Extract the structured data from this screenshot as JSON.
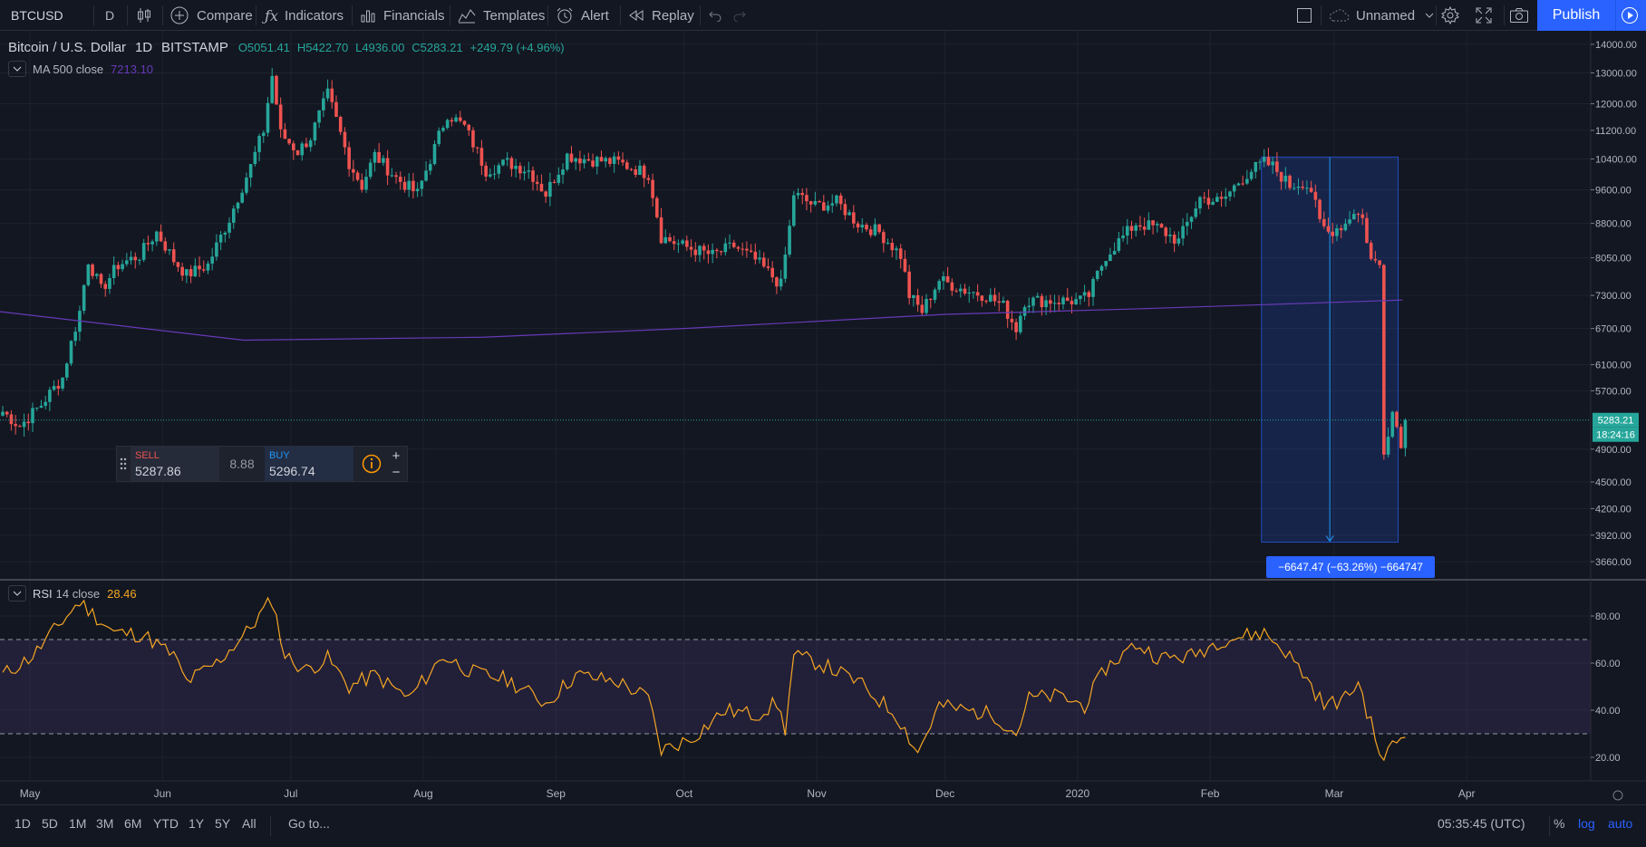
{
  "toolbar": {
    "symbol": "BTCUSD",
    "interval": "D",
    "compare": "Compare",
    "indicators": "Indicators",
    "financials": "Financials",
    "templates": "Templates",
    "alert": "Alert",
    "replay": "Replay",
    "layout_name": "Unnamed",
    "publish": "Publish"
  },
  "legend": {
    "name": "Bitcoin / U.S. Dollar",
    "interval": "1D",
    "exchange": "BITSTAMP",
    "open": "O5051.41",
    "high": "H5422.70",
    "low": "L4936.00",
    "close": "C5283.21",
    "change": "+249.79 (+4.96%)"
  },
  "ma": {
    "label": "MA 500 close",
    "value": "7213.10"
  },
  "rsi": {
    "label": "RSI",
    "params": "14 close",
    "value": "28.46"
  },
  "trade": {
    "sell_label": "SELL",
    "sell_price": "5287.86",
    "spread": "8.88",
    "buy_label": "BUY",
    "buy_price": "5296.74"
  },
  "measure": {
    "label": "−6647.47 (−63.26%) −664747"
  },
  "price_tag": {
    "price": "5283.21",
    "countdown": "18:24:16"
  },
  "bottom": {
    "ranges": [
      "1D",
      "5D",
      "1M",
      "3M",
      "6M",
      "YTD",
      "1Y",
      "5Y",
      "All"
    ],
    "goto": "Go to...",
    "time": "05:35:45 (UTC)",
    "percent": "%",
    "log": "log",
    "auto": "auto"
  },
  "colors": {
    "up": "#26a69a",
    "down": "#ef5350",
    "ma": "#673ab7",
    "rsi": "#f5a623",
    "accent": "#2962ff"
  },
  "chart_data": [
    {
      "type": "candlestick",
      "title": "Bitcoin / U.S. Dollar, 1D, BITSTAMP",
      "scale": "log",
      "ylim": [
        3500,
        14500
      ],
      "y_ticks": [
        "14000.00",
        "13000.00",
        "12000.00",
        "11200.00",
        "10400.00",
        "9600.00",
        "8800.00",
        "8050.00",
        "7300.00",
        "6700.00",
        "6100.00",
        "5700.00",
        "4900.00",
        "4500.00",
        "4200.00",
        "3920.00",
        "3660.00"
      ],
      "x_ticks": [
        "May",
        "Jun",
        "Jul",
        "Aug",
        "Sep",
        "Oct",
        "Nov",
        "Dec",
        "2020",
        "Feb",
        "Mar",
        "Apr"
      ],
      "x_range": [
        "2019-04-24",
        "2020-04-30"
      ],
      "anchors": [
        [
          "2019-04-24",
          5400
        ],
        [
          "2019-04-28",
          5200
        ],
        [
          "2019-05-03",
          5500
        ],
        [
          "2019-05-08",
          5900
        ],
        [
          "2019-05-12",
          7000
        ],
        [
          "2019-05-14",
          8000
        ],
        [
          "2019-05-17",
          7400
        ],
        [
          "2019-05-21",
          7900
        ],
        [
          "2019-05-26",
          8100
        ],
        [
          "2019-05-30",
          8600
        ],
        [
          "2019-06-03",
          8000
        ],
        [
          "2019-06-06",
          7700
        ],
        [
          "2019-06-11",
          7900
        ],
        [
          "2019-06-16",
          8900
        ],
        [
          "2019-06-21",
          10200
        ],
        [
          "2019-06-24",
          11200
        ],
        [
          "2019-06-26",
          12900
        ],
        [
          "2019-06-28",
          11100
        ],
        [
          "2019-07-02",
          10600
        ],
        [
          "2019-07-05",
          11000
        ],
        [
          "2019-07-09",
          12300
        ],
        [
          "2019-07-11",
          11500
        ],
        [
          "2019-07-14",
          10300
        ],
        [
          "2019-07-17",
          9700
        ],
        [
          "2019-07-20",
          10500
        ],
        [
          "2019-07-25",
          9900
        ],
        [
          "2019-07-30",
          9500
        ],
        [
          "2019-08-03",
          10700
        ],
        [
          "2019-08-06",
          11700
        ],
        [
          "2019-08-10",
          11300
        ],
        [
          "2019-08-15",
          10100
        ],
        [
          "2019-08-20",
          10300
        ],
        [
          "2019-08-25",
          10100
        ],
        [
          "2019-08-29",
          9500
        ],
        [
          "2019-09-03",
          10500
        ],
        [
          "2019-09-07",
          10400
        ],
        [
          "2019-09-15",
          10300
        ],
        [
          "2019-09-22",
          10000
        ],
        [
          "2019-09-25",
          8500
        ],
        [
          "2019-09-30",
          8300
        ],
        [
          "2019-10-07",
          8100
        ],
        [
          "2019-10-12",
          8300
        ],
        [
          "2019-10-17",
          8000
        ],
        [
          "2019-10-23",
          7500
        ],
        [
          "2019-10-25",
          8700
        ],
        [
          "2019-10-26",
          9500
        ],
        [
          "2019-10-31",
          9200
        ],
        [
          "2019-11-05",
          9300
        ],
        [
          "2019-11-10",
          8800
        ],
        [
          "2019-11-15",
          8600
        ],
        [
          "2019-11-20",
          8100
        ],
        [
          "2019-11-22",
          7300
        ],
        [
          "2019-11-25",
          7000
        ],
        [
          "2019-11-29",
          7600
        ],
        [
          "2019-12-05",
          7400
        ],
        [
          "2019-12-10",
          7300
        ],
        [
          "2019-12-14",
          7100
        ],
        [
          "2019-12-17",
          6700
        ],
        [
          "2019-12-19",
          7200
        ],
        [
          "2019-12-25",
          7200
        ],
        [
          "2020-01-01",
          7200
        ],
        [
          "2020-01-03",
          7300
        ],
        [
          "2020-01-07",
          8100
        ],
        [
          "2020-01-14",
          8800
        ],
        [
          "2020-01-19",
          8700
        ],
        [
          "2020-01-24",
          8400
        ],
        [
          "2020-01-29",
          9400
        ],
        [
          "2020-02-03",
          9300
        ],
        [
          "2020-02-07",
          9800
        ],
        [
          "2020-02-10",
          10100
        ],
        [
          "2020-02-13",
          10300
        ],
        [
          "2020-02-15",
          10200
        ],
        [
          "2020-02-19",
          9700
        ],
        [
          "2020-02-22",
          9800
        ],
        [
          "2020-02-24",
          9600
        ],
        [
          "2020-02-26",
          8800
        ],
        [
          "2020-02-28",
          8600
        ],
        [
          "2020-03-03",
          8800
        ],
        [
          "2020-03-05",
          9100
        ],
        [
          "2020-03-07",
          8900
        ],
        [
          "2020-03-09",
          8000
        ],
        [
          "2020-03-11",
          7900
        ],
        [
          "2020-03-12",
          4900
        ],
        [
          "2020-03-14",
          5400
        ],
        [
          "2020-03-16",
          5000
        ],
        [
          "2020-03-17",
          5283
        ]
      ],
      "ma500": [
        [
          "2019-04-24",
          7000
        ],
        [
          "2019-06-20",
          6500
        ],
        [
          "2019-08-15",
          6550
        ],
        [
          "2019-10-01",
          6700
        ],
        [
          "2019-12-01",
          6950
        ],
        [
          "2020-01-15",
          7050
        ],
        [
          "2020-03-17",
          7213
        ]
      ],
      "last_price": 5283.21,
      "measure": {
        "from": [
          "2020-02-13",
          10450
        ],
        "to": [
          "2020-03-13",
          3850
        ]
      }
    },
    {
      "type": "line",
      "title": "RSI 14 close",
      "ylim": [
        10,
        95
      ],
      "y_ticks": [
        "80.00",
        "60.00",
        "40.00",
        "20.00"
      ],
      "bands": [
        30,
        70
      ],
      "points": [
        [
          "2019-04-24",
          55
        ],
        [
          "2019-05-01",
          63
        ],
        [
          "2019-05-08",
          78
        ],
        [
          "2019-05-12",
          86
        ],
        [
          "2019-05-20",
          73
        ],
        [
          "2019-05-27",
          72
        ],
        [
          "2019-06-03",
          63
        ],
        [
          "2019-06-06",
          52
        ],
        [
          "2019-06-13",
          60
        ],
        [
          "2019-06-20",
          73
        ],
        [
          "2019-06-26",
          87
        ],
        [
          "2019-06-29",
          63
        ],
        [
          "2019-07-04",
          57
        ],
        [
          "2019-07-09",
          62
        ],
        [
          "2019-07-14",
          50
        ],
        [
          "2019-07-20",
          55
        ],
        [
          "2019-07-28",
          45
        ],
        [
          "2019-08-05",
          63
        ],
        [
          "2019-08-12",
          56
        ],
        [
          "2019-08-20",
          53
        ],
        [
          "2019-08-29",
          43
        ],
        [
          "2019-09-05",
          55
        ],
        [
          "2019-09-15",
          52
        ],
        [
          "2019-09-22",
          45
        ],
        [
          "2019-09-25",
          23
        ],
        [
          "2019-10-02",
          28
        ],
        [
          "2019-10-10",
          40
        ],
        [
          "2019-10-17",
          38
        ],
        [
          "2019-10-22",
          43
        ],
        [
          "2019-10-24",
          32
        ],
        [
          "2019-10-26",
          63
        ],
        [
          "2019-11-01",
          60
        ],
        [
          "2019-11-10",
          52
        ],
        [
          "2019-11-19",
          38
        ],
        [
          "2019-11-24",
          22
        ],
        [
          "2019-11-29",
          42
        ],
        [
          "2019-12-05",
          40
        ],
        [
          "2019-12-12",
          38
        ],
        [
          "2019-12-17",
          30
        ],
        [
          "2019-12-20",
          45
        ],
        [
          "2019-12-27",
          46
        ],
        [
          "2020-01-02",
          42
        ],
        [
          "2020-01-07",
          58
        ],
        [
          "2020-01-14",
          68
        ],
        [
          "2020-01-20",
          62
        ],
        [
          "2020-01-27",
          63
        ],
        [
          "2020-02-03",
          70
        ],
        [
          "2020-02-10",
          72
        ],
        [
          "2020-02-13",
          73
        ],
        [
          "2020-02-18",
          65
        ],
        [
          "2020-02-22",
          56
        ],
        [
          "2020-02-27",
          42
        ],
        [
          "2020-03-03",
          45
        ],
        [
          "2020-03-06",
          52
        ],
        [
          "2020-03-09",
          34
        ],
        [
          "2020-03-12",
          17
        ],
        [
          "2020-03-14",
          27
        ],
        [
          "2020-03-17",
          28.46
        ]
      ]
    }
  ]
}
